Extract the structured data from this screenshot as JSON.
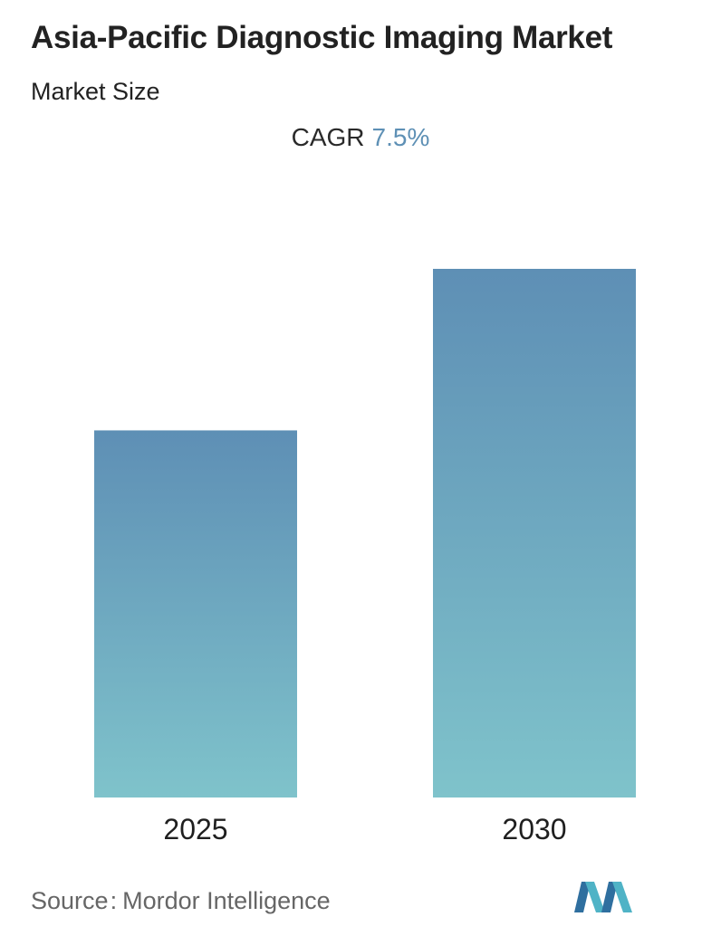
{
  "header": {
    "title": "Asia-Pacific Diagnostic Imaging Market",
    "subtitle": "Market Size"
  },
  "cagr": {
    "label": "CAGR",
    "value": "7.5%"
  },
  "chart_data": {
    "type": "bar",
    "categories": [
      "2025",
      "2030"
    ],
    "values": [
      1.0,
      1.44
    ],
    "title": "Asia-Pacific Diagnostic Imaging Market",
    "subtitle": "Market Size",
    "xlabel": "",
    "ylabel": "",
    "grid": false,
    "legend": "none"
  },
  "colors": {
    "bar_top": "#5e8fb5",
    "bar_bottom": "#7fc3cb",
    "cagr_value": "#5e90b5"
  },
  "footer": {
    "source_label": "Source",
    "source_sep": ":",
    "source_name": "Mordor Intelligence"
  },
  "logo": {
    "icon": "mordor-intelligence-logo"
  }
}
